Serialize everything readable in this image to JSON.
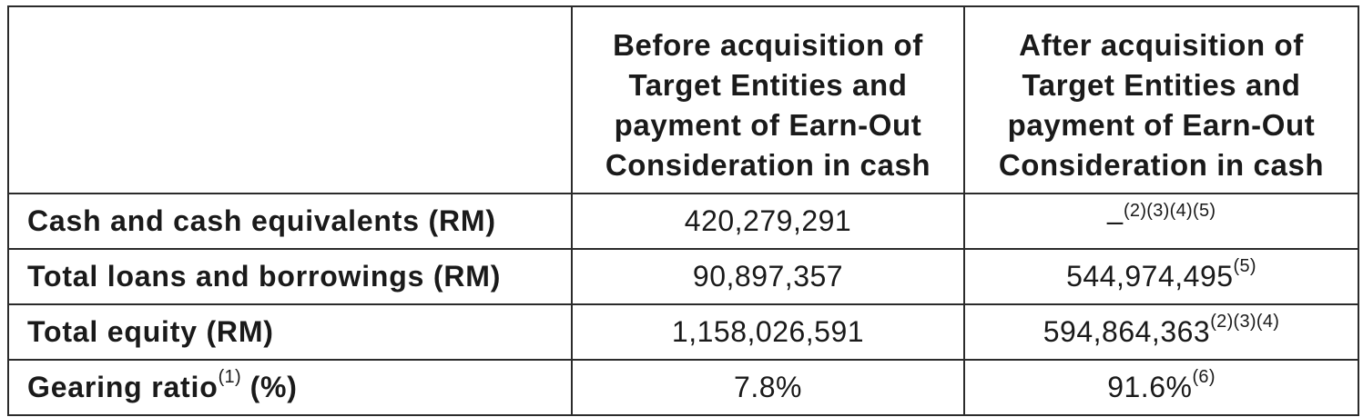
{
  "header": {
    "col1": [
      "Before acquisition of",
      "Target Entities and",
      "payment of Earn-Out",
      "Consideration in cash"
    ],
    "col2": [
      "After acquisition of",
      "Target Entities and",
      "payment of Earn-Out",
      "Consideration in cash"
    ]
  },
  "rows": [
    {
      "label": "Cash and cash equivalents (RM)",
      "before": "420,279,291",
      "after": "–",
      "after_note": "(2)(3)(4)(5)"
    },
    {
      "label": "Total loans and borrowings (RM)",
      "before": "90,897,357",
      "after": "544,974,495",
      "after_note": "(5)"
    },
    {
      "label": "Total equity (RM)",
      "before": "1,158,026,591",
      "after": "594,864,363",
      "after_note": "(2)(3)(4)"
    },
    {
      "label_main": "Gearing ratio",
      "label_note": "(1)",
      "label_tail": " (%)",
      "before": "7.8%",
      "after": "91.6%",
      "after_note": "(6)"
    }
  ]
}
